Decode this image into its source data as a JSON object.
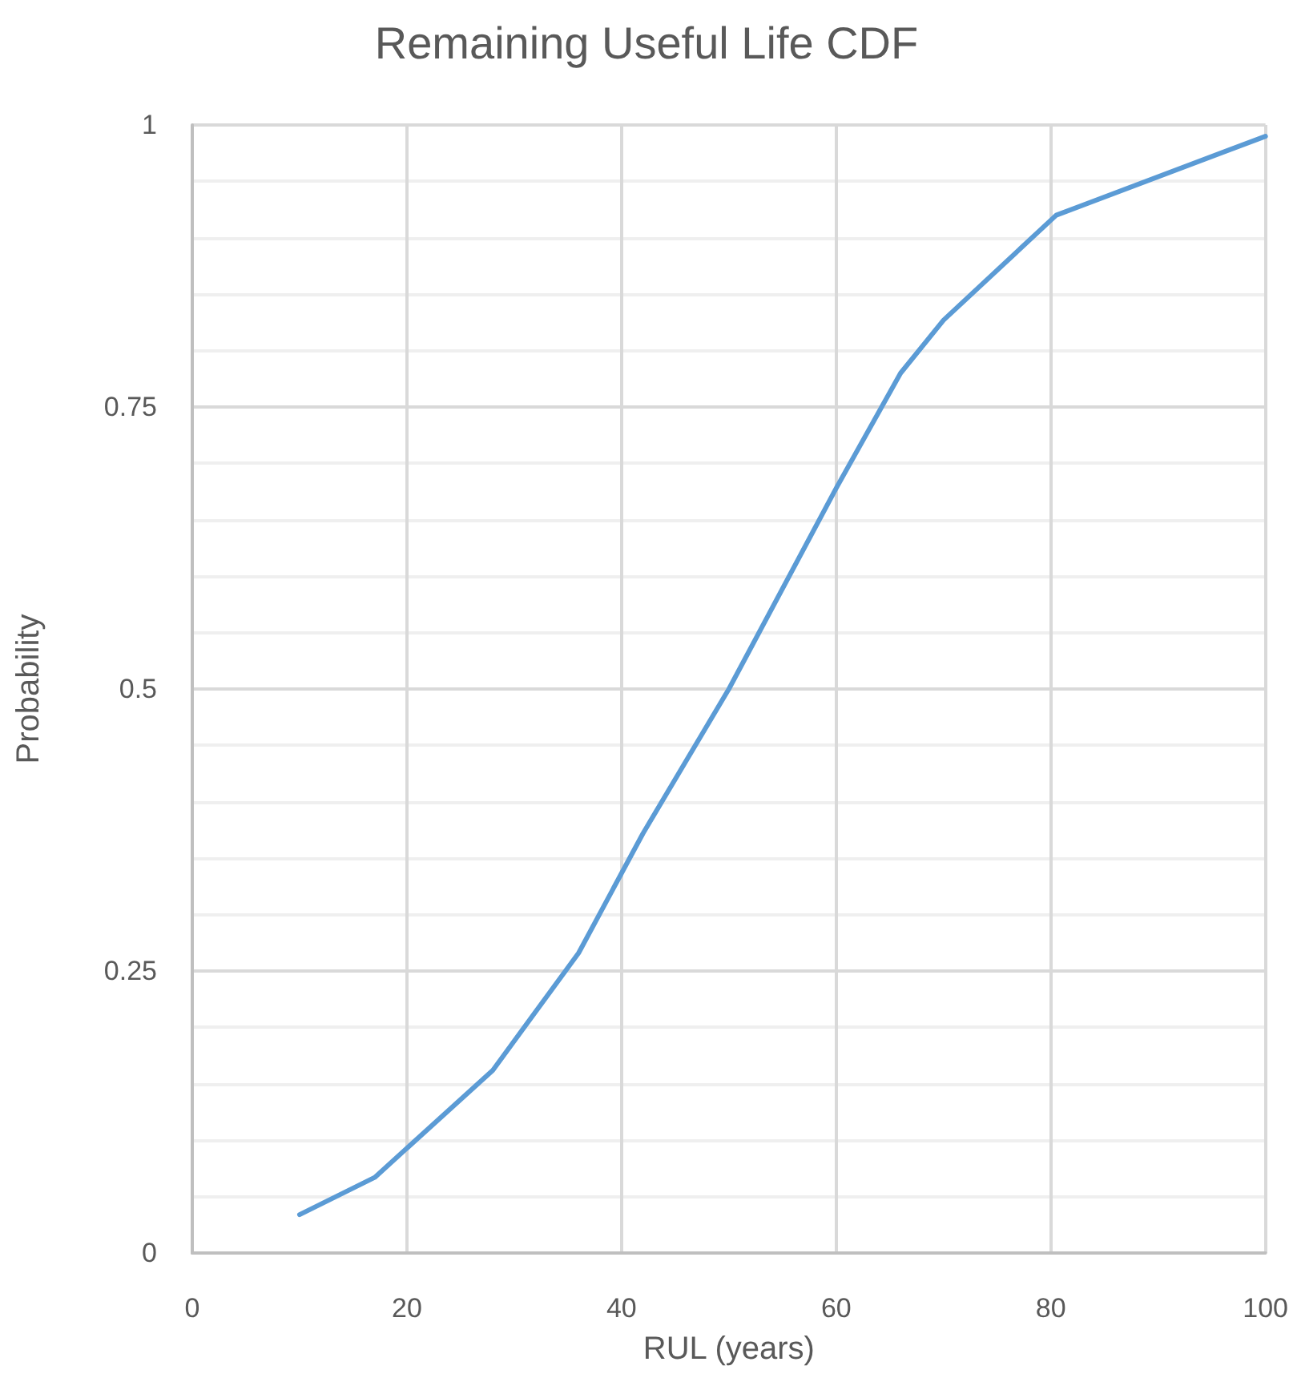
{
  "chart_data": {
    "type": "line",
    "title": "Remaining Useful Life CDF",
    "xlabel": "RUL (years)",
    "ylabel": "Probability",
    "x": [
      10,
      17,
      28,
      36,
      42,
      50,
      60,
      66,
      70,
      80.5,
      100
    ],
    "series": [
      {
        "color": "#5b9bd5",
        "values": [
          0.034,
          0.067,
          0.162,
          0.266,
          0.372,
          0.5,
          0.678,
          0.78,
          0.827,
          0.92,
          0.99
        ]
      }
    ],
    "xlim": [
      0,
      100
    ],
    "xticks": [
      0,
      20,
      40,
      60,
      80,
      100
    ],
    "ylim": [
      0,
      1
    ],
    "yticks": [
      0,
      0.25,
      0.5,
      0.75,
      1
    ],
    "grid": true,
    "marker": "none",
    "line_style": "solid"
  }
}
